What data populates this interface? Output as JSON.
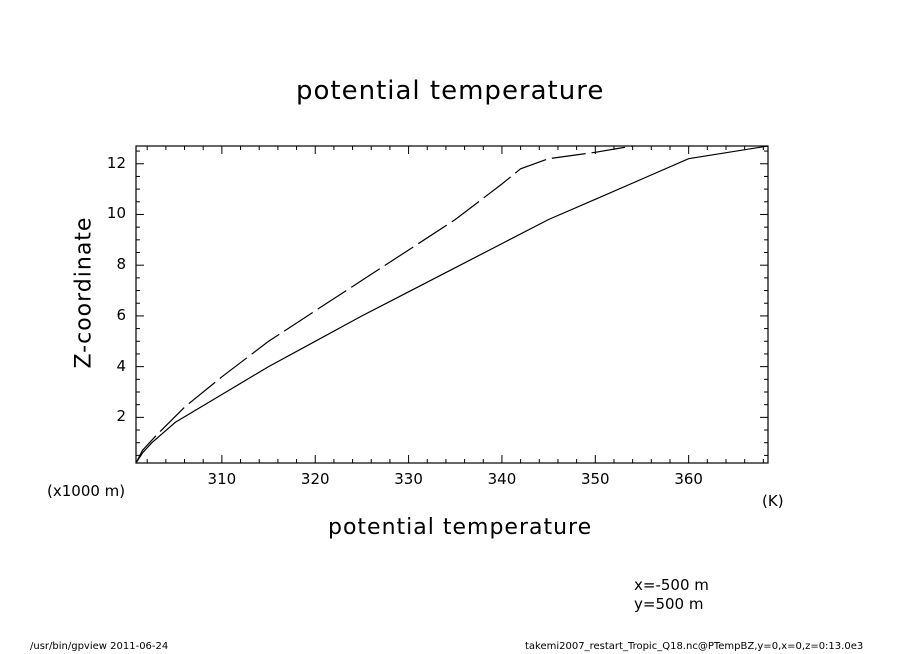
{
  "chart_data": {
    "type": "line",
    "title": "potential temperature",
    "xlabel": "potential temperature",
    "x_unit": "(K)",
    "ylabel": "Z-coordinate",
    "y_unit": "(x1000 m)",
    "xlim": [
      300.8,
      368.5
    ],
    "ylim": [
      0.2,
      12.7
    ],
    "x_ticks": [
      310,
      320,
      330,
      340,
      350,
      360
    ],
    "y_ticks": [
      2,
      4,
      6,
      8,
      10,
      12
    ],
    "grid": false,
    "series": [
      {
        "style": "solid",
        "points": [
          [
            300.8,
            0.2
          ],
          [
            301.5,
            0.6
          ],
          [
            302.5,
            1.0
          ],
          [
            305,
            1.8
          ],
          [
            310,
            2.9
          ],
          [
            315,
            4.0
          ],
          [
            320,
            5.0
          ],
          [
            325,
            6.0
          ],
          [
            330,
            6.95
          ],
          [
            335,
            7.9
          ],
          [
            340,
            8.85
          ],
          [
            345,
            9.8
          ],
          [
            350,
            10.6
          ],
          [
            355,
            11.4
          ],
          [
            360,
            12.2
          ],
          [
            368.5,
            12.7
          ]
        ]
      },
      {
        "style": "dashed",
        "points": [
          [
            300.8,
            0.2
          ],
          [
            301.5,
            0.7
          ],
          [
            303,
            1.3
          ],
          [
            306,
            2.4
          ],
          [
            310,
            3.6
          ],
          [
            315,
            5.0
          ],
          [
            320,
            6.2
          ],
          [
            325,
            7.4
          ],
          [
            330,
            8.6
          ],
          [
            335,
            9.8
          ],
          [
            340,
            11.2
          ],
          [
            342,
            11.8
          ],
          [
            345,
            12.2
          ],
          [
            350,
            12.45
          ],
          [
            354,
            12.7
          ]
        ]
      }
    ]
  },
  "info": {
    "x_coord": "x=-500 m",
    "y_coord": "y=500 m"
  },
  "footer": {
    "left": "/usr/bin/gpview   2011-06-24",
    "right": "takemi2007_restart_Tropic_Q18.nc@PTempBZ,y=0,x=0,z=0:13.0e3"
  }
}
